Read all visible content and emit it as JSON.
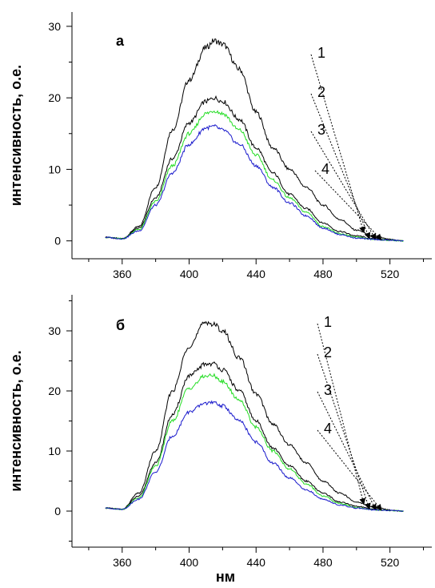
{
  "figure": {
    "shared_xlabel": "нм",
    "panels": [
      {
        "letter": "а",
        "ylabel": "интенсивность, о.е."
      },
      {
        "letter": "б",
        "ylabel": "интенсивность, о.е."
      }
    ]
  },
  "colors": {
    "1": "#000000",
    "2": "#000000",
    "3": "#22dd22",
    "4": "#1a1acc"
  },
  "chart_data": [
    {
      "type": "line",
      "panel": "а",
      "xlabel": "нм",
      "ylabel": "интенсивность, о.е.",
      "xlim": [
        330,
        545
      ],
      "ylim": [
        -2.5,
        32
      ],
      "xticks": [
        360,
        400,
        440,
        480,
        520
      ],
      "yticks": [
        0,
        10,
        20,
        30
      ],
      "grid": false,
      "legend": "numbered curve labels with dotted leader arrows, right side",
      "x": [
        350,
        360,
        370,
        380,
        390,
        400,
        410,
        415,
        420,
        430,
        440,
        450,
        460,
        470,
        480,
        490,
        500,
        510,
        520,
        528
      ],
      "series": [
        {
          "name": "1",
          "values": [
            0.5,
            0.3,
            2.0,
            7.5,
            15.5,
            22.5,
            27.0,
            28.0,
            27.5,
            24.0,
            18.0,
            13.0,
            10.0,
            7.5,
            5.0,
            3.0,
            1.5,
            0.7,
            0.2,
            0.0
          ]
        },
        {
          "name": "2",
          "values": [
            0.5,
            0.3,
            1.8,
            6.0,
            11.5,
            16.5,
            19.5,
            20.0,
            19.5,
            17.0,
            13.0,
            9.5,
            6.5,
            4.5,
            2.5,
            1.3,
            0.7,
            0.3,
            0.1,
            0.0
          ]
        },
        {
          "name": "3",
          "values": [
            0.5,
            0.3,
            1.6,
            5.5,
            10.5,
            15.0,
            17.8,
            18.2,
            17.8,
            15.5,
            12.0,
            8.5,
            6.0,
            4.0,
            2.0,
            1.0,
            0.5,
            0.2,
            0.1,
            0.0
          ]
        },
        {
          "name": "4",
          "values": [
            0.5,
            0.3,
            1.4,
            5.0,
            9.5,
            13.5,
            15.8,
            16.0,
            15.5,
            13.5,
            10.5,
            7.5,
            5.3,
            3.5,
            1.8,
            0.9,
            0.4,
            0.2,
            0.1,
            0.0
          ]
        }
      ]
    },
    {
      "type": "line",
      "panel": "б",
      "xlabel": "нм",
      "ylabel": "интенсивность, о.е.",
      "xlim": [
        330,
        545
      ],
      "ylim": [
        -6,
        36
      ],
      "xticks": [
        360,
        400,
        440,
        480,
        520
      ],
      "yticks": [
        0,
        10,
        20,
        30
      ],
      "grid": false,
      "legend": "numbered curve labels with dotted leader arrows, right side",
      "x": [
        350,
        360,
        370,
        380,
        390,
        400,
        410,
        415,
        420,
        430,
        440,
        450,
        460,
        470,
        480,
        490,
        500,
        510,
        520,
        528
      ],
      "series": [
        {
          "name": "1",
          "values": [
            0.5,
            0.3,
            3.0,
            10.0,
            20.0,
            27.5,
            31.5,
            31.0,
            30.0,
            25.5,
            19.5,
            14.5,
            11.0,
            8.0,
            5.0,
            3.0,
            1.5,
            0.7,
            0.2,
            0.0
          ]
        },
        {
          "name": "2",
          "values": [
            0.5,
            0.3,
            2.5,
            8.0,
            16.0,
            22.5,
            24.5,
            24.5,
            23.5,
            20.0,
            15.0,
            10.5,
            7.5,
            5.0,
            3.0,
            1.5,
            0.8,
            0.3,
            0.1,
            0.0
          ]
        },
        {
          "name": "3",
          "values": [
            0.5,
            0.3,
            2.2,
            7.5,
            15.0,
            20.5,
            22.5,
            22.5,
            21.5,
            18.5,
            14.0,
            10.0,
            7.0,
            4.5,
            2.5,
            1.3,
            0.6,
            0.2,
            0.1,
            0.0
          ]
        },
        {
          "name": "4",
          "values": [
            0.5,
            0.3,
            2.0,
            6.5,
            12.5,
            16.5,
            18.0,
            18.0,
            17.5,
            15.0,
            11.5,
            8.0,
            5.5,
            3.5,
            2.0,
            1.0,
            0.5,
            0.2,
            0.1,
            0.0
          ]
        }
      ]
    }
  ]
}
